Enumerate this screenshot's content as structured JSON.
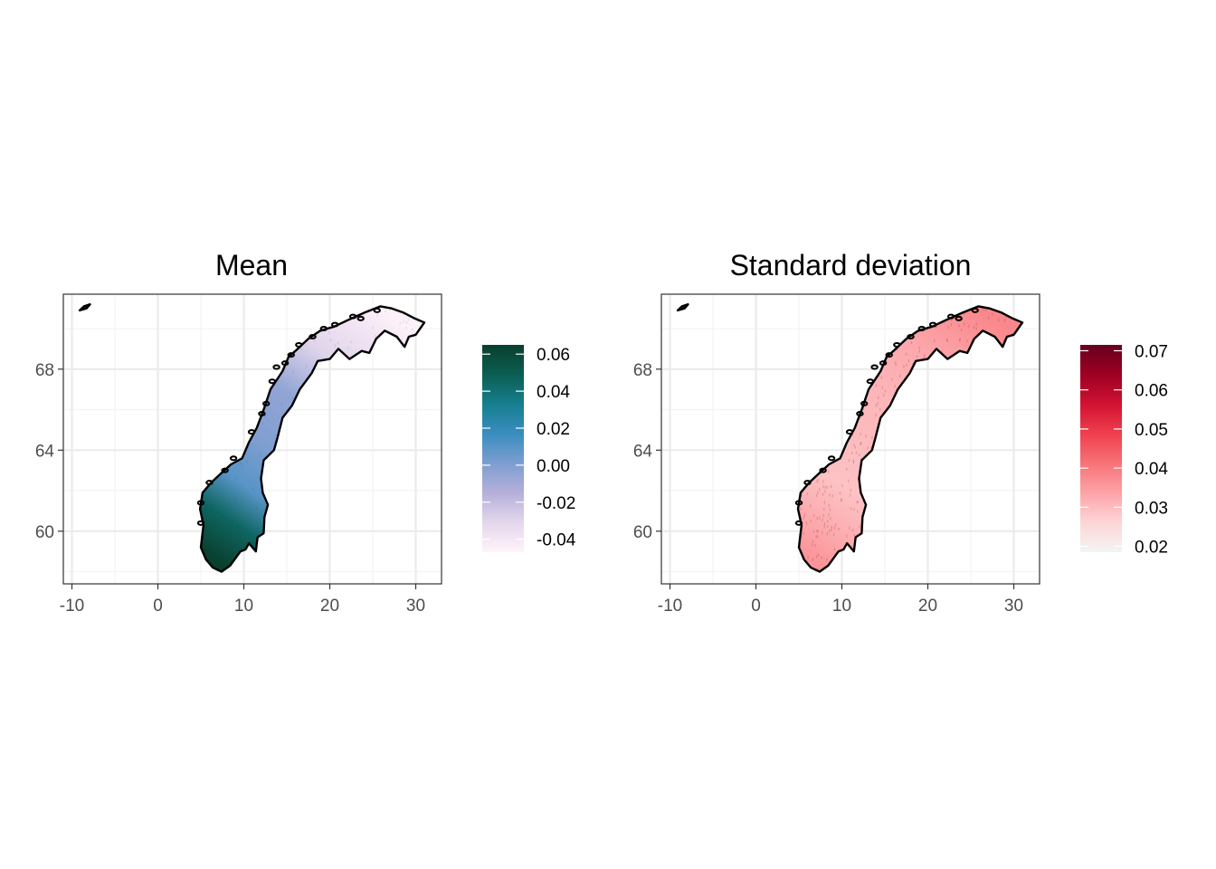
{
  "panels": [
    {
      "id": "mean",
      "title": "Mean",
      "x_ticks": [
        "-10",
        "0",
        "10",
        "20",
        "30"
      ],
      "x_tick_values": [
        -10,
        0,
        10,
        20,
        30
      ],
      "y_ticks": [
        "60",
        "64",
        "68"
      ],
      "y_tick_values": [
        60,
        64,
        68
      ],
      "xlim": [
        -11,
        33
      ],
      "ylim": [
        57.4,
        71.7
      ],
      "grid": true,
      "legend": {
        "labels": [
          "0.06",
          "0.04",
          "0.02",
          "0.00",
          "-0.02",
          "-0.04"
        ],
        "values": [
          0.06,
          0.04,
          0.02,
          0.0,
          -0.02,
          -0.04
        ],
        "range": [
          -0.047,
          0.065
        ],
        "colors": [
          "#fff4fb",
          "#e4d7ec",
          "#b5b0da",
          "#7d9ed0",
          "#3a8dbf",
          "#167f8f",
          "#0b5e52",
          "#093f2e"
        ]
      },
      "fill_values": {
        "south": 0.065,
        "west_coast": 0.045,
        "east_south": 0.01,
        "central": 0.0,
        "nordland": -0.005,
        "troms": -0.03,
        "finnmark": -0.045
      }
    },
    {
      "id": "sd",
      "title": "Standard deviation",
      "x_ticks": [
        "-10",
        "0",
        "10",
        "20",
        "30"
      ],
      "x_tick_values": [
        -10,
        0,
        10,
        20,
        30
      ],
      "y_ticks": [
        "60",
        "64",
        "68"
      ],
      "y_tick_values": [
        60,
        64,
        68
      ],
      "xlim": [
        -11,
        33
      ],
      "ylim": [
        57.4,
        71.7
      ],
      "grid": true,
      "legend": {
        "labels": [
          "0.07",
          "0.06",
          "0.05",
          "0.04",
          "0.03",
          "0.02"
        ],
        "values": [
          0.07,
          0.06,
          0.05,
          0.04,
          0.03,
          0.02
        ],
        "range": [
          0.0185,
          0.0715
        ],
        "colors": [
          "#f4f4f4",
          "#fdd5d6",
          "#fca4a8",
          "#f77378",
          "#ef3f4d",
          "#d11233",
          "#9e0022",
          "#67001f"
        ]
      },
      "fill_values": {
        "south": 0.036,
        "west_coast": 0.032,
        "east_south": 0.029,
        "central": 0.03,
        "nordland": 0.031,
        "troms": 0.033,
        "finnmark": 0.038
      }
    }
  ],
  "outline": {
    "mainland": [
      [
        5.0,
        59.2
      ],
      [
        5.3,
        60.3
      ],
      [
        4.9,
        61.1
      ],
      [
        5.2,
        61.9
      ],
      [
        6.2,
        62.4
      ],
      [
        7.2,
        62.8
      ],
      [
        8.5,
        63.3
      ],
      [
        9.8,
        63.6
      ],
      [
        10.6,
        64.4
      ],
      [
        11.5,
        65.1
      ],
      [
        12.3,
        66.0
      ],
      [
        13.1,
        67.0
      ],
      [
        14.5,
        67.9
      ],
      [
        15.2,
        68.6
      ],
      [
        16.0,
        68.9
      ],
      [
        17.5,
        69.5
      ],
      [
        18.9,
        69.9
      ],
      [
        20.5,
        70.1
      ],
      [
        22.0,
        70.4
      ],
      [
        24.1,
        70.8
      ],
      [
        25.9,
        71.1
      ],
      [
        27.2,
        71.0
      ],
      [
        28.5,
        70.8
      ],
      [
        29.9,
        70.5
      ],
      [
        31.0,
        70.3
      ],
      [
        30.5,
        70.0
      ],
      [
        30.0,
        69.7
      ],
      [
        29.2,
        69.6
      ],
      [
        28.7,
        69.1
      ],
      [
        27.8,
        69.6
      ],
      [
        26.4,
        69.9
      ],
      [
        25.4,
        69.5
      ],
      [
        24.6,
        68.8
      ],
      [
        23.7,
        68.9
      ],
      [
        22.3,
        68.5
      ],
      [
        21.0,
        69.0
      ],
      [
        20.0,
        68.5
      ],
      [
        18.6,
        68.4
      ],
      [
        17.9,
        67.8
      ],
      [
        16.5,
        67.0
      ],
      [
        15.6,
        66.2
      ],
      [
        14.5,
        65.6
      ],
      [
        13.9,
        64.6
      ],
      [
        13.5,
        64.0
      ],
      [
        12.3,
        63.5
      ],
      [
        12.0,
        62.6
      ],
      [
        12.2,
        61.9
      ],
      [
        12.8,
        61.3
      ],
      [
        12.4,
        60.7
      ],
      [
        12.3,
        59.9
      ],
      [
        11.6,
        59.7
      ],
      [
        11.4,
        59.0
      ],
      [
        10.6,
        59.4
      ],
      [
        10.2,
        59.1
      ],
      [
        9.6,
        59.0
      ],
      [
        8.4,
        58.3
      ],
      [
        7.4,
        58.0
      ],
      [
        6.4,
        58.2
      ],
      [
        5.6,
        58.6
      ]
    ],
    "islands": [
      [
        [
          -9.1,
          70.9
        ],
        [
          -8.6,
          71.1
        ],
        [
          -7.9,
          71.2
        ],
        [
          -8.3,
          71.0
        ]
      ]
    ],
    "islets": [
      [
        5.0,
        60.4
      ],
      [
        5.0,
        61.4
      ],
      [
        6.0,
        62.4
      ],
      [
        7.8,
        63.0
      ],
      [
        8.8,
        63.6
      ],
      [
        10.9,
        64.9
      ],
      [
        12.1,
        65.8
      ],
      [
        12.6,
        66.3
      ],
      [
        13.3,
        67.4
      ],
      [
        13.8,
        68.1
      ],
      [
        14.8,
        68.3
      ],
      [
        15.5,
        68.7
      ],
      [
        16.4,
        69.2
      ],
      [
        18.0,
        69.6
      ],
      [
        19.3,
        70.0
      ],
      [
        20.6,
        70.2
      ],
      [
        22.7,
        70.6
      ],
      [
        23.6,
        70.5
      ],
      [
        25.5,
        70.9
      ]
    ]
  }
}
